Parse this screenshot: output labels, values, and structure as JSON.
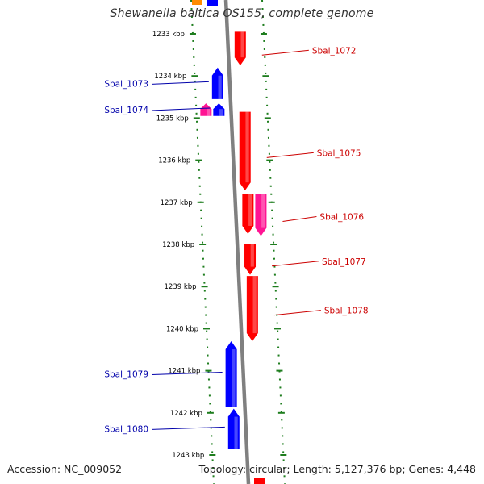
{
  "title": "Shewanella baltica OS155, complete genome",
  "accession": "Accession: NC_009052",
  "summary": "Topology: circular; Length: 5,127,376 bp; Genes: 4,448",
  "colors": {
    "forward_gene": "#ff0000",
    "reverse_gene": "#0000ff",
    "rna_gene": "#ff1493",
    "other_gene": "#ff8c00",
    "backbone": "#808080",
    "tick": "#1e7d1e",
    "forward_label": "#cc0000",
    "reverse_label": "#0000aa"
  },
  "ruler": {
    "unit": "kbp",
    "ticks": [
      {
        "kbp": 1233,
        "label": "1233 kbp"
      },
      {
        "kbp": 1234,
        "label": "1234 kbp"
      },
      {
        "kbp": 1235,
        "label": "1235 kbp"
      },
      {
        "kbp": 1236,
        "label": "1236 kbp"
      },
      {
        "kbp": 1237,
        "label": "1237 kbp"
      },
      {
        "kbp": 1238,
        "label": "1238 kbp"
      },
      {
        "kbp": 1239,
        "label": "1239 kbp"
      },
      {
        "kbp": 1240,
        "label": "1240 kbp"
      },
      {
        "kbp": 1241,
        "label": "1241 kbp"
      },
      {
        "kbp": 1242,
        "label": "1242 kbp"
      },
      {
        "kbp": 1243,
        "label": "1243 kbp"
      }
    ]
  },
  "genes": [
    {
      "name": "Sbal_1072",
      "strand": "forward",
      "type": "cds",
      "start_kbp": 1232.95,
      "end_kbp": 1233.75,
      "labeled": true
    },
    {
      "name": "Sbal_1073",
      "strand": "reverse",
      "type": "cds",
      "start_kbp": 1233.8,
      "end_kbp": 1234.55,
      "labeled": true
    },
    {
      "name": "Sbal_1074",
      "strand": "reverse",
      "type": "cds",
      "start_kbp": 1234.65,
      "end_kbp": 1234.95,
      "labeled": true
    },
    {
      "name": "",
      "strand": "reverse",
      "type": "rna",
      "start_kbp": 1234.65,
      "end_kbp": 1234.95,
      "labeled": false
    },
    {
      "name": "Sbal_1075",
      "strand": "forward",
      "type": "cds",
      "start_kbp": 1234.85,
      "end_kbp": 1236.72,
      "labeled": true
    },
    {
      "name": "Sbal_1076",
      "strand": "forward",
      "type": "rna",
      "start_kbp": 1236.8,
      "end_kbp": 1237.8,
      "labeled": true
    },
    {
      "name": "",
      "strand": "forward",
      "type": "cds",
      "start_kbp": 1236.8,
      "end_kbp": 1237.75,
      "labeled": false
    },
    {
      "name": "Sbal_1077",
      "strand": "forward",
      "type": "cds",
      "start_kbp": 1238.0,
      "end_kbp": 1238.72,
      "labeled": true
    },
    {
      "name": "Sbal_1078",
      "strand": "forward",
      "type": "cds",
      "start_kbp": 1238.75,
      "end_kbp": 1240.3,
      "labeled": true
    },
    {
      "name": "Sbal_1079",
      "strand": "reverse",
      "type": "cds",
      "start_kbp": 1240.3,
      "end_kbp": 1241.85,
      "labeled": true
    },
    {
      "name": "Sbal_1080",
      "strand": "reverse",
      "type": "cds",
      "start_kbp": 1241.9,
      "end_kbp": 1242.85,
      "labeled": true
    }
  ]
}
